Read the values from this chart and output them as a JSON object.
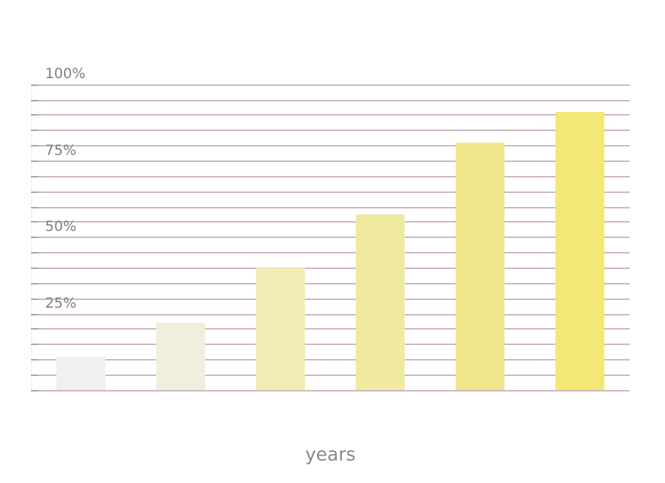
{
  "chart_data": {
    "type": "bar",
    "xlabel": "years",
    "categories": [
      null,
      null,
      null,
      null,
      null,
      null
    ],
    "values": [
      11,
      22,
      40,
      57.5,
      81,
      91
    ],
    "colors": [
      "#f0f0f0",
      "#f0eedc",
      "#f0ecb4",
      "#f0e9a0",
      "#f0e68c",
      "#f3e873"
    ],
    "ylim": [
      0,
      100
    ],
    "yticks": [
      {
        "value": 0,
        "label": null
      },
      {
        "value": 5,
        "label": null
      },
      {
        "value": 10,
        "label": null
      },
      {
        "value": 15,
        "label": null
      },
      {
        "value": 20,
        "label": null
      },
      {
        "value": 25,
        "label": "25%"
      },
      {
        "value": 30,
        "label": null
      },
      {
        "value": 35,
        "label": null
      },
      {
        "value": 40,
        "label": null
      },
      {
        "value": 45,
        "label": null
      },
      {
        "value": 50,
        "label": "50%"
      },
      {
        "value": 55,
        "label": null
      },
      {
        "value": 60,
        "label": null
      },
      {
        "value": 65,
        "label": null
      },
      {
        "value": 70,
        "label": null
      },
      {
        "value": 75,
        "label": "75%"
      },
      {
        "value": 80,
        "label": null
      },
      {
        "value": 85,
        "label": null
      },
      {
        "value": 90,
        "label": null
      },
      {
        "value": 95,
        "label": null
      },
      {
        "value": 100,
        "label": "100%"
      }
    ],
    "grid": "y"
  }
}
